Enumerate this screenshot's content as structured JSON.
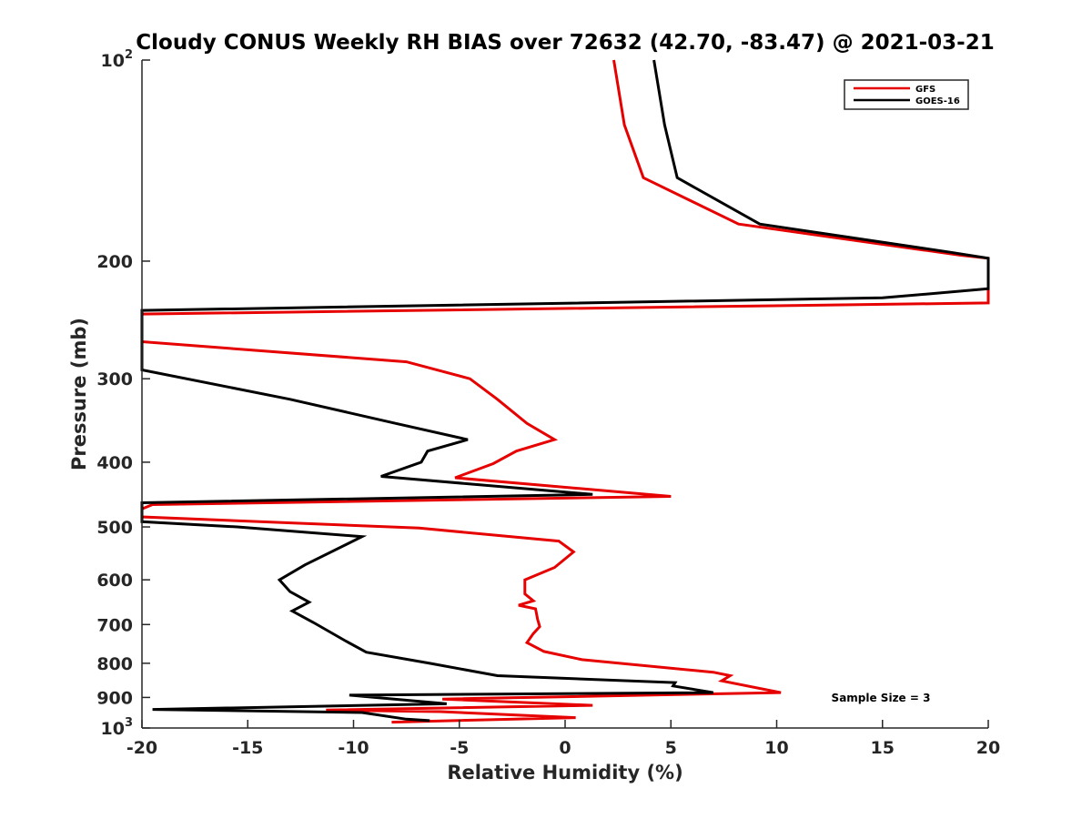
{
  "chart_data": {
    "type": "line",
    "title": "Cloudy CONUS Weekly RH BIAS over 72632 (42.70, -83.47) @ 2021-03-21",
    "xlabel": "Relative Humidity (%)",
    "ylabel": "Pressure (mb)",
    "xlim": [
      -20,
      20
    ],
    "ylim": [
      100,
      1000
    ],
    "yscale": "log",
    "y_reversed": true,
    "grid": false,
    "legend_position": "top-right",
    "x_ticks": [
      -20,
      -15,
      -10,
      -5,
      0,
      5,
      10,
      15,
      20
    ],
    "y_ticks": [
      {
        "value": 100,
        "label": "10",
        "sup": "2"
      },
      {
        "value": 200,
        "label": "200",
        "sup": ""
      },
      {
        "value": 300,
        "label": "300",
        "sup": ""
      },
      {
        "value": 400,
        "label": "400",
        "sup": ""
      },
      {
        "value": 500,
        "label": "500",
        "sup": ""
      },
      {
        "value": 600,
        "label": "600",
        "sup": ""
      },
      {
        "value": 700,
        "label": "700",
        "sup": ""
      },
      {
        "value": 800,
        "label": "800",
        "sup": ""
      },
      {
        "value": 900,
        "label": "900",
        "sup": ""
      },
      {
        "value": 1000,
        "label": "10",
        "sup": "3"
      }
    ],
    "annotation": "Sample Size = 3",
    "series": [
      {
        "name": "GFS",
        "color": "#e60000",
        "points": [
          [
            2.3,
            100
          ],
          [
            2.8,
            125
          ],
          [
            3.7,
            150
          ],
          [
            8.2,
            176
          ],
          [
            18.7,
            196
          ],
          [
            20.0,
            198
          ],
          [
            20.0,
            231
          ],
          [
            -20.0,
            240
          ],
          [
            -20.0,
            264
          ],
          [
            -7.5,
            283
          ],
          [
            -4.5,
            300
          ],
          [
            -3.2,
            322
          ],
          [
            -1.8,
            350
          ],
          [
            -0.5,
            370
          ],
          [
            -2.3,
            385
          ],
          [
            -3.4,
            402
          ],
          [
            -5.2,
            422
          ],
          [
            5.0,
            450
          ],
          [
            -19.5,
            463
          ],
          [
            -20.0,
            470
          ],
          [
            -20.0,
            483
          ],
          [
            -6.9,
            502
          ],
          [
            -0.3,
            525
          ],
          [
            0.4,
            545
          ],
          [
            -0.5,
            575
          ],
          [
            -1.9,
            600
          ],
          [
            -1.9,
            630
          ],
          [
            -1.5,
            645
          ],
          [
            -2.2,
            655
          ],
          [
            -1.4,
            663
          ],
          [
            -1.3,
            688
          ],
          [
            -1.2,
            705
          ],
          [
            -1.5,
            722
          ],
          [
            -1.8,
            745
          ],
          [
            -1.0,
            768
          ],
          [
            0.8,
            790
          ],
          [
            7.0,
            825
          ],
          [
            7.8,
            835
          ],
          [
            7.4,
            850
          ],
          [
            10.2,
            885
          ],
          [
            -5.8,
            905
          ],
          [
            1.3,
            925
          ],
          [
            -11.3,
            940
          ],
          [
            -5.9,
            945
          ],
          [
            0.5,
            965
          ],
          [
            -8.2,
            980
          ]
        ]
      },
      {
        "name": "GOES-16",
        "color": "#000000",
        "points": [
          [
            4.2,
            100
          ],
          [
            4.7,
            125
          ],
          [
            5.3,
            150
          ],
          [
            9.2,
            176
          ],
          [
            18.2,
            194
          ],
          [
            20.0,
            198
          ],
          [
            20.0,
            220
          ],
          [
            15.0,
            227
          ],
          [
            -20.0,
            237
          ],
          [
            -20.0,
            291
          ],
          [
            -13.0,
            322
          ],
          [
            -8.0,
            350
          ],
          [
            -4.6,
            370
          ],
          [
            -6.5,
            385
          ],
          [
            -6.8,
            400
          ],
          [
            -8.7,
            420
          ],
          [
            1.3,
            447
          ],
          [
            -20.0,
            460
          ],
          [
            -20.0,
            491
          ],
          [
            -15.5,
            500
          ],
          [
            -9.6,
            517
          ],
          [
            -12.3,
            570
          ],
          [
            -13.5,
            600
          ],
          [
            -13.0,
            625
          ],
          [
            -12.1,
            648
          ],
          [
            -12.9,
            668
          ],
          [
            -11.9,
            695
          ],
          [
            -10.4,
            740
          ],
          [
            -9.4,
            770
          ],
          [
            -6.4,
            800
          ],
          [
            -3.2,
            835
          ],
          [
            5.2,
            855
          ],
          [
            5.1,
            865
          ],
          [
            7.0,
            885
          ],
          [
            -10.2,
            893
          ],
          [
            -5.6,
            920
          ],
          [
            -19.5,
            938
          ],
          [
            -9.6,
            948
          ],
          [
            -7.5,
            970
          ],
          [
            -6.4,
            975
          ]
        ]
      }
    ]
  }
}
